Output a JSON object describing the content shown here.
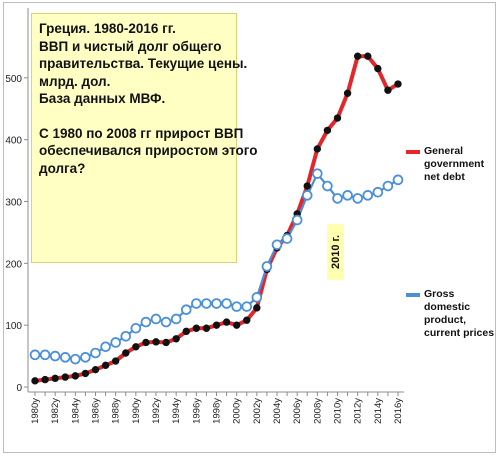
{
  "note": {
    "lines": [
      "Греция. 1980-2016 гг.",
      "ВВП и чистый долг общего",
      "правительства. Текущие цены.",
      "млрд. дол.",
      "База данных МВФ.",
      "",
      "С 1980 по 2008 гг прирост ВВП",
      "обеспечивался приростом этого",
      "долга?"
    ]
  },
  "annotation": "2010 г.",
  "legend": {
    "debt": [
      "General",
      "government",
      "net debt"
    ],
    "gdp": [
      "Gross",
      "domestic",
      "product,",
      "current prices"
    ]
  },
  "colors": {
    "debt": "#e3262a",
    "gdp": "#4a90d9",
    "line_dark": "#111111"
  },
  "chart_data": {
    "type": "line",
    "title": "",
    "xlabel": "",
    "ylabel": "",
    "ylim": [
      0,
      600
    ],
    "yticks": [
      0,
      100,
      200,
      300,
      400,
      500
    ],
    "grid": false,
    "legend_position": "right",
    "x": [
      1980,
      1981,
      1982,
      1983,
      1984,
      1985,
      1986,
      1987,
      1988,
      1989,
      1990,
      1991,
      1992,
      1993,
      1994,
      1995,
      1996,
      1997,
      1998,
      1999,
      2000,
      2001,
      2002,
      2003,
      2004,
      2005,
      2006,
      2007,
      2008,
      2009,
      2010,
      2011,
      2012,
      2013,
      2014,
      2015,
      2016
    ],
    "xtick_labels": [
      "1980y",
      "1982y",
      "1984y",
      "1986y",
      "1988y",
      "1990y",
      "1992y",
      "1994y",
      "1996y",
      "1998y",
      "2000y",
      "2002y",
      "2004y",
      "2006y",
      "2008y",
      "2010y",
      "2012y",
      "2014y",
      "2016y"
    ],
    "series": [
      {
        "name": "General government net debt",
        "values": [
          10,
          12,
          14,
          16,
          18,
          22,
          28,
          35,
          42,
          55,
          65,
          72,
          73,
          72,
          78,
          90,
          95,
          95,
          100,
          105,
          100,
          108,
          128,
          190,
          225,
          245,
          280,
          325,
          385,
          415,
          435,
          475,
          535,
          535,
          515,
          480,
          490
        ]
      },
      {
        "name": "Gross domestic product, current prices",
        "values": [
          52,
          52,
          50,
          48,
          45,
          48,
          55,
          65,
          72,
          82,
          95,
          105,
          110,
          105,
          110,
          125,
          135,
          135,
          135,
          135,
          130,
          130,
          145,
          195,
          230,
          240,
          270,
          310,
          345,
          325,
          305,
          310,
          305,
          310,
          315,
          325,
          335
        ]
      }
    ]
  }
}
